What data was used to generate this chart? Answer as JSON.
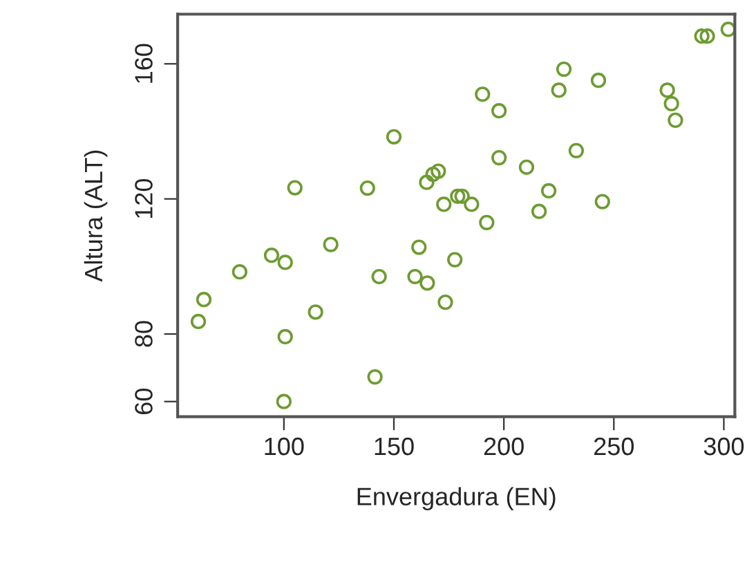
{
  "chart_data": {
    "type": "scatter",
    "xlabel": "Envergadura (EN)",
    "ylabel": "Altura (ALT)",
    "xlim": [
      51.7,
      305
    ],
    "ylim": [
      55.5,
      174.7
    ],
    "xticks": [
      100,
      150,
      200,
      250,
      300
    ],
    "yticks": [
      60,
      80,
      120,
      160
    ],
    "grid": false,
    "marker": "circle",
    "series": [
      {
        "color": "#6e9b32",
        "x": [
          61.1,
          63.6,
          79.9,
          94.4,
          100.6,
          105,
          100.6,
          100,
          114.4,
          121.3,
          138,
          143.3,
          141.4,
          150,
          161.4,
          159.6,
          165.2,
          173.4,
          164.9,
          167.8,
          170.2,
          172.7,
          179,
          181,
          185.3,
          177.7,
          192.2,
          190.3,
          197.8,
          197.8,
          210.3,
          220.4,
          216,
          232.9,
          244.8,
          227.3,
          225,
          243,
          274.3,
          276.2,
          278,
          290,
          292.5,
          302
        ],
        "values": [
          83.7,
          90.2,
          98.4,
          103.3,
          101.2,
          123.3,
          79.2,
          60,
          86.5,
          106.5,
          123.2,
          97,
          67.3,
          138.4,
          105.7,
          97,
          95.1,
          89.4,
          124.9,
          127.3,
          128.2,
          118.4,
          120.8,
          120.8,
          118.4,
          102,
          113,
          151,
          146.1,
          132.2,
          129.4,
          122.4,
          116.3,
          134.3,
          119.2,
          158.4,
          152.2,
          155.1,
          152.2,
          148.2,
          143.3,
          168.2,
          168.2,
          170.2
        ]
      }
    ]
  }
}
